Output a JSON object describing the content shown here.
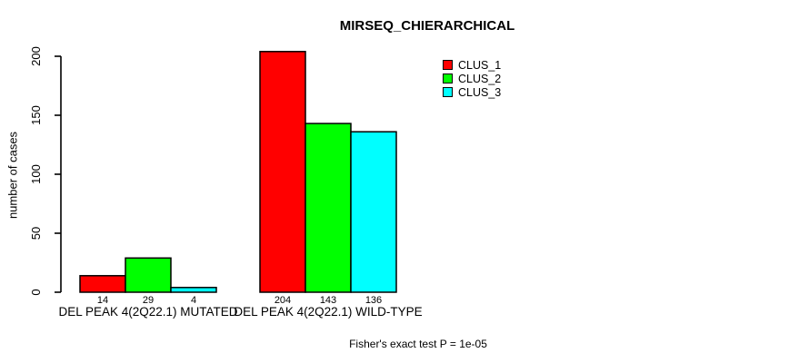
{
  "chart_data": {
    "type": "bar",
    "title": "MIRSEQ_CHIERARCHICAL",
    "ylabel": "number of cases",
    "xlabel": "",
    "ylim": [
      0,
      200
    ],
    "yticks": [
      0,
      50,
      100,
      150,
      200
    ],
    "grid": false,
    "legend_position": "top-right-inside",
    "show_values_under_bars": true,
    "categories": [
      "DEL PEAK 4(2Q22.1) MUTATED",
      "DEL PEAK 4(2Q22.1) WILD-TYPE"
    ],
    "series": [
      {
        "name": "CLUS_1",
        "color": "#ff0000",
        "values": [
          14,
          204
        ]
      },
      {
        "name": "CLUS_2",
        "color": "#00ff00",
        "values": [
          29,
          143
        ]
      },
      {
        "name": "CLUS_3",
        "color": "#00ffff",
        "values": [
          4,
          136
        ]
      }
    ],
    "annotation": "Fisher's exact test P = 1e-05",
    "bar_border_color": "#000000",
    "axis_color": "#000000"
  }
}
